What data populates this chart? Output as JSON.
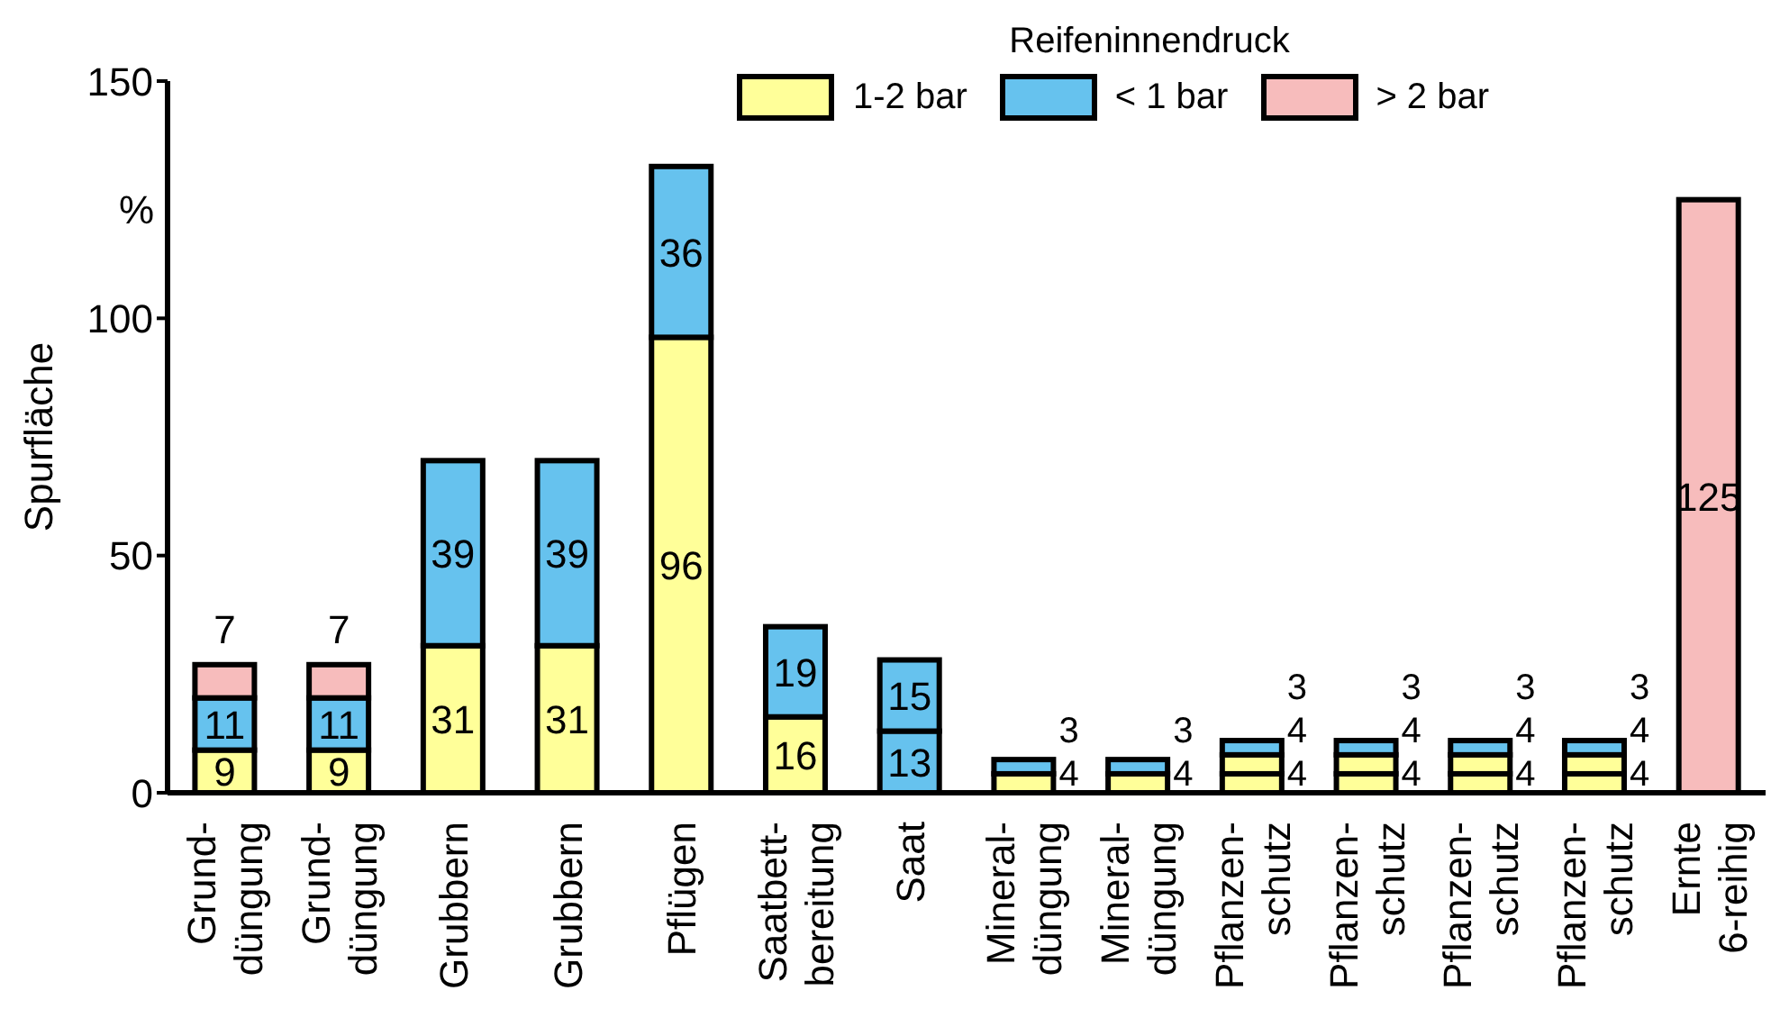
{
  "chart_data": {
    "type": "bar",
    "stacked": true,
    "legend_title": "Reifeninnendruck",
    "ylabel": "Spurfläche",
    "annotations": [
      "%"
    ],
    "categories": [
      "Grund-\ndüngung",
      "Grund-\ndüngung",
      "Grubbern",
      "Grubbern",
      "Pflügen",
      "Saatbett-\nbereitung",
      "Saat",
      "Mineral-\ndüngung",
      "Mineral-\ndüngung",
      "Pflanzen-\nschutz",
      "Pflanzen-\nschutz",
      "Pflanzen-\nschutz",
      "Pflanzen-\nschutz",
      "Ernte\n6-reihig"
    ],
    "series": [
      {
        "name": "1-2 bar",
        "color": "#ffff99",
        "values": [
          9,
          9,
          31,
          31,
          96,
          16,
          null,
          4,
          4,
          4,
          4,
          4,
          4,
          null
        ]
      },
      {
        "color": "#ffff99",
        "values": [
          null,
          null,
          null,
          null,
          null,
          null,
          null,
          null,
          null,
          4,
          4,
          4,
          4,
          null
        ]
      },
      {
        "name": "< 1 bar",
        "color": "#66c2ee",
        "values": [
          11,
          11,
          39,
          39,
          36,
          19,
          13,
          3,
          3,
          3,
          3,
          3,
          3,
          null
        ]
      },
      {
        "color": "#66c2ee",
        "values": [
          null,
          null,
          null,
          null,
          null,
          null,
          15,
          null,
          null,
          null,
          null,
          null,
          null,
          null
        ]
      },
      {
        "name": "> 2 bar",
        "color": "#f7bcbc",
        "values": [
          7,
          7,
          null,
          null,
          null,
          null,
          null,
          null,
          null,
          null,
          null,
          null,
          null,
          125
        ]
      }
    ],
    "ylim": [
      0,
      150
    ],
    "yticks": [
      0,
      50,
      100,
      150
    ],
    "grid": false,
    "legend": "top",
    "data_labels": true
  }
}
